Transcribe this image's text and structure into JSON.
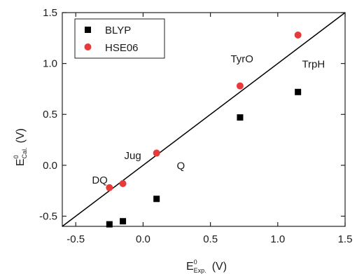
{
  "chart_data": {
    "type": "scatter",
    "xlabel": {
      "base": "E",
      "sup": "0",
      "sub": "Exp.",
      "unit": "(V)"
    },
    "ylabel": {
      "base": "E",
      "sup": "0",
      "sub": "Cal.",
      "unit": "(V)"
    },
    "xlim": [
      -0.6,
      1.5
    ],
    "ylim": [
      -0.6,
      1.5
    ],
    "xticks": [
      -0.5,
      0.0,
      0.5,
      1.0,
      1.5
    ],
    "xtick_labels": [
      "-0.5",
      "0.0",
      "0.5",
      "1.0",
      "1.5"
    ],
    "yticks": [
      -0.5,
      0.0,
      0.5,
      1.0,
      1.5
    ],
    "ytick_labels": [
      "-0.5",
      "0.0",
      "0.5",
      "1.0",
      "1.5"
    ],
    "grid": false,
    "legend_position": "top-left",
    "reference_line": {
      "type": "y=x",
      "color": "#000000"
    },
    "series": [
      {
        "name": "BLYP",
        "marker": "square",
        "color": "#000000",
        "x": [
          -0.25,
          -0.15,
          0.1,
          0.72,
          1.15
        ],
        "y": [
          -0.58,
          -0.55,
          -0.33,
          0.47,
          0.72
        ]
      },
      {
        "name": "HSE06",
        "marker": "circle",
        "color": "#e8393b",
        "x": [
          -0.25,
          -0.15,
          0.1,
          0.72,
          1.15
        ],
        "y": [
          -0.22,
          -0.18,
          0.12,
          0.78,
          1.28
        ]
      }
    ],
    "annotations": [
      {
        "text": "DQ",
        "x": -0.38,
        "y": -0.18
      },
      {
        "text": "Jug",
        "x": -0.14,
        "y": 0.06
      },
      {
        "text": "Q",
        "x": 0.25,
        "y": -0.04
      },
      {
        "text": "TyrO",
        "x": 0.65,
        "y": 1.01
      },
      {
        "text": "TrpH",
        "x": 1.18,
        "y": 0.96
      }
    ]
  }
}
